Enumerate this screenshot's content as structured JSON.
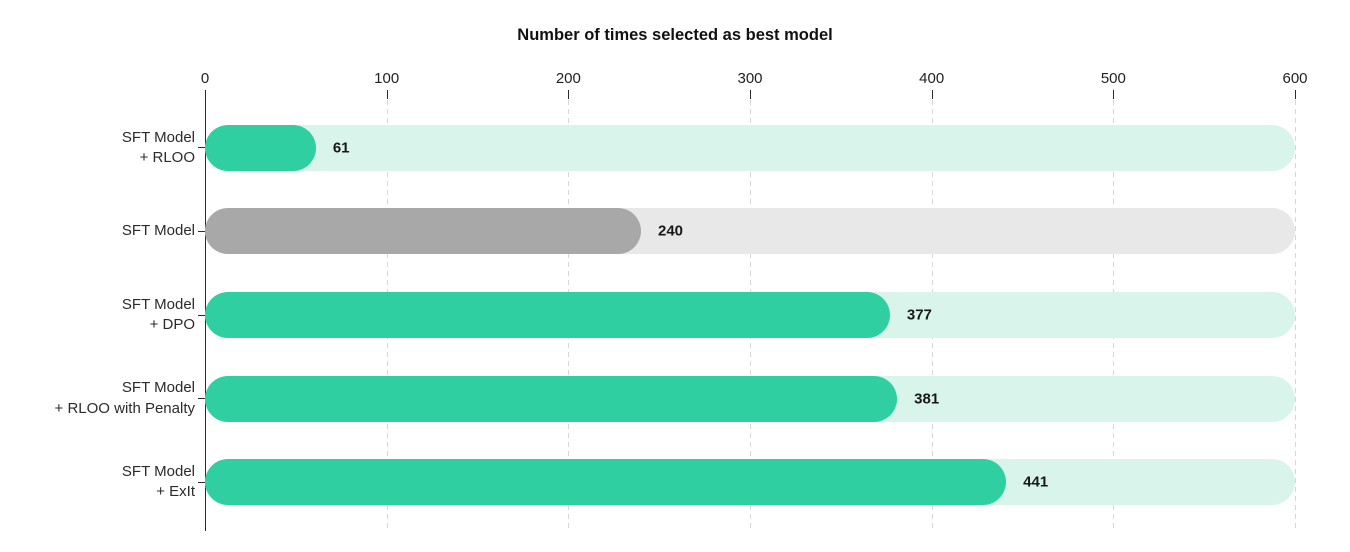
{
  "chart_data": {
    "type": "bar",
    "orientation": "horizontal",
    "title": "Number of times selected as best model",
    "categories": [
      "SFT Model + RLOO",
      "SFT Model",
      "SFT Model + DPO",
      "SFT Model + RLOO with Penalty",
      "SFT Model + ExIt"
    ],
    "values": [
      61,
      240,
      377,
      381,
      441
    ],
    "xlim": [
      0,
      600
    ],
    "xticks": [
      0,
      100,
      200,
      300,
      400,
      500,
      600
    ],
    "grid": "dashed-vertical",
    "legend": "none",
    "axis_label_position": "top",
    "track_max": 600,
    "bars": [
      {
        "category_lines": [
          "SFT Model",
          "+ RLOO"
        ],
        "value": 61,
        "color": "#2fcfa2",
        "track_color": "#d9f4eb"
      },
      {
        "category_lines": [
          "SFT Model"
        ],
        "value": 240,
        "color": "#a8a8a8",
        "track_color": "#e8e8e8"
      },
      {
        "category_lines": [
          "SFT Model",
          "+ DPO"
        ],
        "value": 377,
        "color": "#2fcfa2",
        "track_color": "#d9f4eb"
      },
      {
        "category_lines": [
          "SFT Model",
          "+ RLOO with Penalty"
        ],
        "value": 381,
        "color": "#2fcfa2",
        "track_color": "#d9f4eb"
      },
      {
        "category_lines": [
          "SFT Model",
          "+ ExIt"
        ],
        "value": 441,
        "color": "#2fcfa2",
        "track_color": "#d9f4eb"
      }
    ],
    "colors": {
      "accent_bar": "#2fcfa2",
      "accent_track": "#d9f4eb",
      "muted_bar": "#a8a8a8",
      "muted_track": "#e8e8e8",
      "gridline": "#d6d6d6",
      "axis": "#2b2b2b",
      "value_label": "#181818",
      "title": "#111111"
    }
  }
}
